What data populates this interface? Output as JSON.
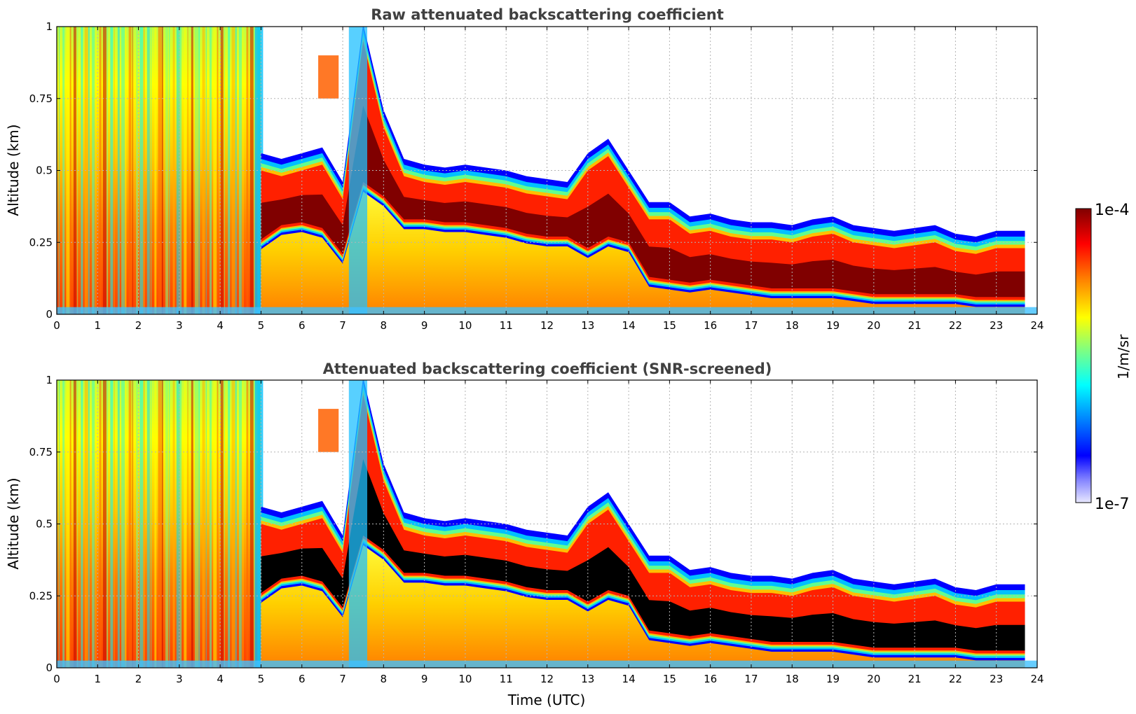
{
  "chart_data": [
    {
      "type": "heatmap",
      "title": "Raw attenuated backscattering coefficient",
      "xlabel": "",
      "ylabel": "Altitude (km)",
      "xlim": [
        0,
        24
      ],
      "ylim": [
        0,
        1
      ],
      "x_ticks": [
        "0",
        "1",
        "2",
        "3",
        "4",
        "5",
        "6",
        "7",
        "8",
        "9",
        "10",
        "11",
        "12",
        "13",
        "14",
        "15",
        "16",
        "17",
        "18",
        "19",
        "20",
        "21",
        "22",
        "23",
        "24"
      ],
      "y_ticks": [
        "0",
        "0.25",
        "0.5",
        "0.75",
        "1"
      ],
      "grid": true,
      "saturated_color": "#800000",
      "cloud_base_km": {
        "time": [
          5.0,
          5.5,
          6,
          6.5,
          7,
          7.5,
          8,
          8.5,
          9,
          9.5,
          10,
          10.5,
          11,
          11.5,
          12,
          12.5,
          13,
          13.5,
          14,
          14.5,
          15,
          15.5,
          16,
          16.5,
          17,
          17.5,
          18,
          18.5,
          19,
          19.5,
          20,
          20.5,
          21,
          21.5,
          22,
          22.5,
          23,
          23.7
        ],
        "base": [
          0.25,
          0.3,
          0.31,
          0.29,
          0.2,
          0.45,
          0.4,
          0.32,
          0.32,
          0.31,
          0.31,
          0.3,
          0.29,
          0.27,
          0.26,
          0.26,
          0.22,
          0.26,
          0.24,
          0.12,
          0.11,
          0.1,
          0.11,
          0.1,
          0.09,
          0.08,
          0.08,
          0.08,
          0.08,
          0.07,
          0.06,
          0.06,
          0.06,
          0.06,
          0.06,
          0.05,
          0.05,
          0.05
        ],
        "top": [
          0.5,
          0.48,
          0.5,
          0.52,
          0.4,
          0.95,
          0.65,
          0.48,
          0.46,
          0.45,
          0.46,
          0.45,
          0.44,
          0.42,
          0.41,
          0.4,
          0.5,
          0.55,
          0.44,
          0.33,
          0.33,
          0.28,
          0.29,
          0.27,
          0.26,
          0.26,
          0.25,
          0.27,
          0.28,
          0.25,
          0.24,
          0.23,
          0.24,
          0.25,
          0.22,
          0.21,
          0.23,
          0.23
        ]
      }
    },
    {
      "type": "heatmap",
      "title": "Attenuated backscattering coefficient (SNR-screened)",
      "xlabel": "Time (UTC)",
      "ylabel": "Altitude (km)",
      "xlim": [
        0,
        24
      ],
      "ylim": [
        0,
        1
      ],
      "x_ticks": [
        "0",
        "1",
        "2",
        "3",
        "4",
        "5",
        "6",
        "7",
        "8",
        "9",
        "10",
        "11",
        "12",
        "13",
        "14",
        "15",
        "16",
        "17",
        "18",
        "19",
        "20",
        "21",
        "22",
        "23",
        "24"
      ],
      "y_ticks": [
        "0",
        "0.25",
        "0.5",
        "0.75",
        "1"
      ],
      "grid": true,
      "saturated_color": "#000000"
    }
  ],
  "colorbar": {
    "label": "1/m/sr",
    "max_label": "1e-4",
    "min_label": "1e-7",
    "colors": [
      "#e8e8ff",
      "#8080ff",
      "#0000ff",
      "#0080ff",
      "#00ffff",
      "#80ff80",
      "#ffff00",
      "#ff8000",
      "#ff0000",
      "#800000"
    ]
  }
}
